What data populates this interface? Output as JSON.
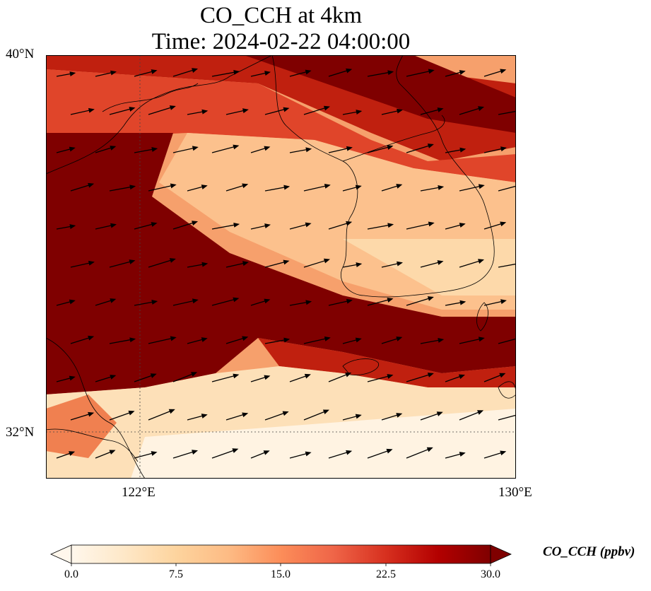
{
  "title": {
    "line1": "CO_CCH at 4km",
    "line2": "Time: 2024-02-22 04:00:00"
  },
  "axes": {
    "lat_ticks": [
      "40°N",
      "32°N"
    ],
    "lon_ticks": [
      "122°E",
      "130°E"
    ],
    "lat_range": [
      31,
      40
    ],
    "lon_range": [
      120,
      130
    ]
  },
  "colorbar": {
    "label": "CO_CCH (ppbv)",
    "ticks": [
      "0.0",
      "7.5",
      "15.0",
      "22.5",
      "30.0"
    ],
    "min": 0,
    "max": 30,
    "extend": "both",
    "colormap": "OrRd",
    "colors": [
      "#fff7ec",
      "#fee8c8",
      "#fdd49e",
      "#fdbb84",
      "#fc8d59",
      "#ef6548",
      "#d7301f",
      "#b30000",
      "#7f0000"
    ]
  },
  "map": {
    "gridlines": "dotted",
    "coastlines": true,
    "wind_vectors": true
  }
}
